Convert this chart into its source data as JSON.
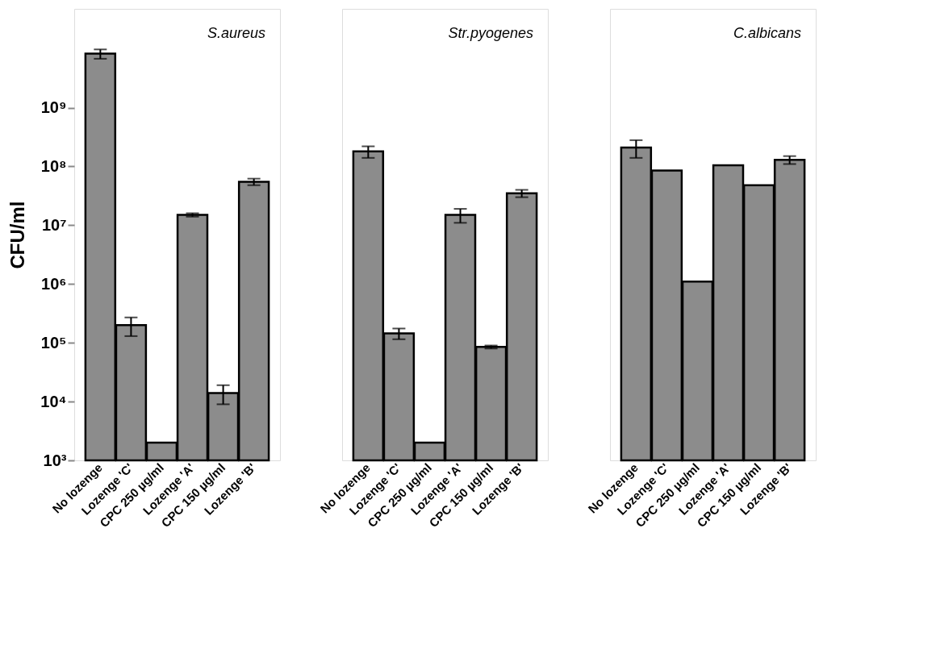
{
  "chart_data": [
    {
      "type": "bar",
      "title": "S.aureus",
      "ylabel": "CFU/ml",
      "log": true,
      "grid": false,
      "categories": [
        "No lozenge",
        "Lozenge 'C'",
        "CPC 250 µg/ml",
        "Lozenge 'A'",
        "CPC 150 µg/ml",
        "Lozenge 'B'"
      ],
      "values": [
        8300000000,
        200000,
        2000,
        15000000,
        14000,
        55000000
      ],
      "errors": [
        1500000000,
        70000,
        null,
        1000000,
        5000,
        7000000
      ],
      "color": "#8c8c8c",
      "ylim": [
        1000,
        48000000000
      ],
      "yticks": [
        {
          "value": 1000,
          "label": "10³"
        },
        {
          "value": 10000,
          "label": "10⁴"
        },
        {
          "value": 100000,
          "label": "10⁵"
        },
        {
          "value": 1000000,
          "label": "10⁶"
        },
        {
          "value": 10000000,
          "label": "10⁷"
        },
        {
          "value": 100000000,
          "label": "10⁸"
        },
        {
          "value": 1000000000,
          "label": "10⁹"
        }
      ]
    },
    {
      "type": "bar",
      "title": "Str.pyogenes",
      "log": true,
      "grid": false,
      "tick_labels": "x",
      "categories": [
        "No lozenge",
        "Lozenge 'C'",
        "CPC 250 µg/ml",
        "Lozenge 'A'",
        "CPC 150 µg/ml",
        "Lozenge 'B'"
      ],
      "values": [
        180000000,
        145000,
        2000,
        15000000,
        85000,
        35000000
      ],
      "errors": [
        40000000,
        30000,
        null,
        4000000,
        5000,
        5000000
      ],
      "color": "#8c8c8c",
      "ylim": [
        1000,
        48000000000
      ]
    },
    {
      "type": "bar",
      "title": "C.albicans",
      "log": true,
      "grid": false,
      "tick_labels": "x",
      "categories": [
        "No lozenge",
        "Lozenge 'C'",
        "CPC 250 µg/ml",
        "Lozenge 'A'",
        "CPC 150 µg/ml",
        "Lozenge 'B'"
      ],
      "values": [
        210000000,
        85000000,
        1100000,
        105000000,
        48000000,
        130000000
      ],
      "errors": [
        70000000,
        null,
        null,
        null,
        null,
        20000000
      ],
      "color": "#8c8c8c",
      "ylim": [
        1000,
        48000000000
      ]
    }
  ]
}
